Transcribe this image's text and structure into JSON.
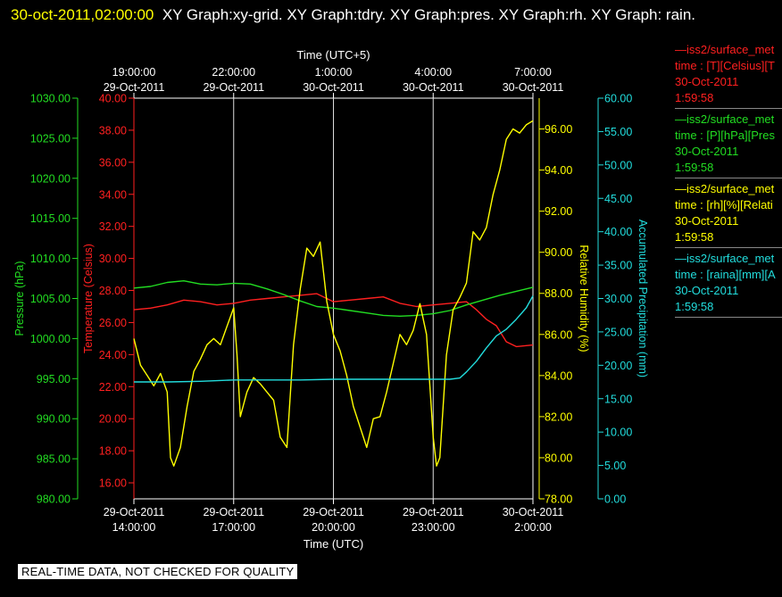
{
  "header": {
    "timestamp": "30-oct-2011,02:00:00",
    "graphs": "XY Graph:xy-grid.  XY Graph:tdry.  XY Graph:pres.  XY Graph:rh.  XY Graph: rain."
  },
  "legend": [
    {
      "name": "—iss2/surface_met",
      "units": "time : [T][Celsius][T",
      "date": "30-Oct-2011",
      "time": "1:59:58",
      "color": "#ff2020"
    },
    {
      "name": "—iss2/surface_met",
      "units": "time : [P][hPa][Pres",
      "date": "30-Oct-2011",
      "time": "1:59:58",
      "color": "#22dd22"
    },
    {
      "name": "—iss2/surface_met",
      "units": "time : [rh][%][Relati",
      "date": "30-Oct-2011",
      "time": "1:59:58",
      "color": "#ffff00"
    },
    {
      "name": "—iss2/surface_met",
      "units": "time : [raina][mm][A",
      "date": "30-Oct-2011",
      "time": "1:59:58",
      "color": "#22dddd"
    }
  ],
  "footer": "REAL-TIME DATA, NOT CHECKED FOR QUALITY",
  "chart_data": {
    "type": "line",
    "x_axis_bottom": {
      "label": "Time (UTC)",
      "ticks": [
        {
          "date": "29-Oct-2011",
          "time": "14:00:00"
        },
        {
          "date": "29-Oct-2011",
          "time": "17:00:00"
        },
        {
          "date": "29-Oct-2011",
          "time": "20:00:00"
        },
        {
          "date": "29-Oct-2011",
          "time": "23:00:00"
        },
        {
          "date": "30-Oct-2011",
          "time": "2:00:00"
        }
      ]
    },
    "x_axis_top": {
      "label": "Time (UTC+5)",
      "ticks": [
        {
          "time": "19:00:00",
          "date": "29-Oct-2011"
        },
        {
          "time": "22:00:00",
          "date": "29-Oct-2011"
        },
        {
          "time": "1:00:00",
          "date": "30-Oct-2011"
        },
        {
          "time": "4:00:00",
          "date": "30-Oct-2011"
        },
        {
          "time": "7:00:00",
          "date": "30-Oct-2011"
        }
      ]
    },
    "grid": true,
    "axes": {
      "pressure": {
        "label": "Pressure (hPa)",
        "color": "#22dd22",
        "ylim": [
          980,
          1030
        ],
        "side": "left-outer",
        "ticks": [
          "980.00",
          "985.00",
          "990.00",
          "995.00",
          "1000.00",
          "1005.00",
          "1010.00",
          "1015.00",
          "1020.00",
          "1025.00",
          "1030.00"
        ]
      },
      "temperature": {
        "label": "Temperature (Celsius)",
        "color": "#ff2020",
        "ylim": [
          15,
          40
        ],
        "side": "left-inner",
        "ticks": [
          "16.00",
          "18.00",
          "20.00",
          "22.00",
          "24.00",
          "26.00",
          "28.00",
          "30.00",
          "32.00",
          "34.00",
          "36.00",
          "38.00",
          "40.00"
        ]
      },
      "rh": {
        "label": "Relative Humidity (%)",
        "color": "#ffff00",
        "ylim": [
          78,
          97.5
        ],
        "side": "right-inner",
        "ticks": [
          "78.00",
          "80.00",
          "82.00",
          "84.00",
          "86.00",
          "88.00",
          "90.00",
          "92.00",
          "94.00",
          "96.00"
        ]
      },
      "rain": {
        "label": "Accumulated Precipitation (mm)",
        "color": "#22dddd",
        "ylim": [
          0,
          60
        ],
        "side": "right-outer",
        "ticks": [
          "0.00",
          "5.00",
          "10.00",
          "15.00",
          "20.00",
          "25.00",
          "30.00",
          "35.00",
          "40.00",
          "45.00",
          "50.00",
          "55.00",
          "60.00"
        ]
      }
    },
    "x_hours": [
      0,
      12
    ],
    "series": [
      {
        "key": "temperature",
        "axis": "temperature",
        "color": "#ff2020",
        "x": [
          0,
          0.5,
          1,
          1.5,
          2,
          2.5,
          3,
          3.5,
          4,
          4.5,
          5,
          5.5,
          6,
          6.5,
          7,
          7.5,
          8,
          8.5,
          9,
          9.5,
          10,
          10.3,
          10.6,
          10.9,
          11.2,
          11.5,
          12
        ],
        "y": [
          26.8,
          26.9,
          27.1,
          27.4,
          27.3,
          27.1,
          27.2,
          27.4,
          27.5,
          27.6,
          27.7,
          27.8,
          27.3,
          27.4,
          27.5,
          27.6,
          27.2,
          27.0,
          27.1,
          27.2,
          27.3,
          26.8,
          26.2,
          25.8,
          24.8,
          24.5,
          24.6
        ]
      },
      {
        "key": "pressure",
        "axis": "pressure",
        "color": "#22dd22",
        "x": [
          0,
          0.5,
          1,
          1.5,
          2,
          2.5,
          3,
          3.5,
          4,
          4.5,
          5,
          5.5,
          6,
          6.5,
          7,
          7.5,
          8,
          8.5,
          9,
          9.5,
          10,
          10.5,
          11,
          11.5,
          12
        ],
        "y": [
          1006.3,
          1006.5,
          1007.0,
          1007.2,
          1006.8,
          1006.7,
          1006.9,
          1006.8,
          1006.2,
          1005.5,
          1004.7,
          1004.0,
          1003.8,
          1003.5,
          1003.2,
          1002.9,
          1002.8,
          1002.9,
          1003.1,
          1003.5,
          1004.2,
          1004.8,
          1005.4,
          1005.9,
          1006.4
        ]
      },
      {
        "key": "rh",
        "axis": "rh",
        "color": "#ffff00",
        "x": [
          0,
          0.2,
          0.4,
          0.6,
          0.8,
          1.0,
          1.1,
          1.2,
          1.4,
          1.6,
          1.8,
          2.0,
          2.2,
          2.4,
          2.6,
          2.8,
          3.0,
          3.1,
          3.2,
          3.4,
          3.6,
          3.8,
          4.0,
          4.2,
          4.4,
          4.6,
          4.8,
          5.0,
          5.2,
          5.4,
          5.6,
          5.8,
          6.0,
          6.2,
          6.4,
          6.6,
          6.8,
          7.0,
          7.2,
          7.4,
          7.6,
          7.8,
          8.0,
          8.2,
          8.4,
          8.6,
          8.8,
          9.0,
          9.1,
          9.2,
          9.4,
          9.6,
          9.8,
          10.0,
          10.2,
          10.4,
          10.6,
          10.8,
          11.0,
          11.2,
          11.4,
          11.6,
          11.8,
          12.0
        ],
        "y": [
          85.8,
          84.5,
          84.0,
          83.5,
          84.1,
          83.2,
          80.0,
          79.6,
          80.5,
          82.5,
          84.2,
          84.8,
          85.5,
          85.8,
          85.5,
          86.4,
          87.3,
          85.0,
          82.0,
          83.2,
          83.9,
          83.6,
          83.2,
          82.8,
          81.0,
          80.5,
          85.5,
          88.2,
          90.2,
          89.8,
          90.5,
          87.6,
          86.0,
          85.2,
          84.0,
          82.5,
          81.5,
          80.5,
          81.9,
          82.0,
          83.2,
          84.6,
          86.0,
          85.5,
          86.2,
          87.5,
          86.0,
          81.0,
          79.6,
          80.0,
          85.0,
          87.2,
          87.8,
          88.5,
          91.0,
          90.6,
          91.2,
          92.8,
          94.0,
          95.5,
          96.0,
          95.8,
          96.2,
          96.4
        ]
      },
      {
        "key": "rain",
        "axis": "rain",
        "color": "#22dddd",
        "x": [
          0,
          1,
          2,
          3,
          4,
          5,
          6,
          7,
          8,
          9,
          9.5,
          9.8,
          10.0,
          10.3,
          10.6,
          10.9,
          11.2,
          11.5,
          11.8,
          12
        ],
        "y": [
          17.5,
          17.5,
          17.6,
          17.8,
          17.8,
          17.8,
          17.9,
          17.9,
          17.9,
          17.9,
          17.9,
          18.1,
          19.0,
          20.6,
          22.6,
          24.4,
          25.4,
          26.9,
          28.6,
          30.4
        ]
      }
    ]
  }
}
